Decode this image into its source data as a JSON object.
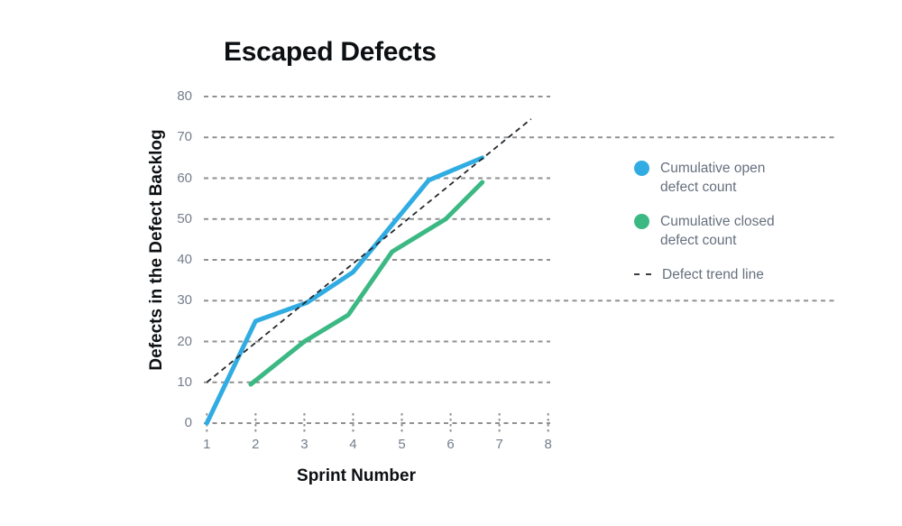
{
  "title": "Escaped Defects",
  "legend": {
    "items": [
      {
        "label": "Cumulative open\ndefect count",
        "marker": "dot",
        "color": "#31ace2"
      },
      {
        "label": "Cumulative closed\ndefect count",
        "marker": "dot",
        "color": "#3cb883"
      },
      {
        "label": "Defect trend line",
        "marker": "dash",
        "color": "#3a3f46"
      }
    ]
  },
  "chart_data": {
    "type": "line",
    "title": "Escaped Defects",
    "xlabel": "Sprint Number",
    "ylabel": "Defects in the Defect Backlog",
    "xlim": [
      1,
      8
    ],
    "ylim": [
      0,
      80
    ],
    "x_ticks": [
      1,
      2,
      3,
      4,
      5,
      6,
      7,
      8
    ],
    "y_ticks": [
      0,
      10,
      20,
      30,
      40,
      50,
      60,
      70,
      80
    ],
    "grid": "horizontal-dashed",
    "long_gridlines": [
      30,
      70
    ],
    "legend_position": "right",
    "series": [
      {
        "name": "Cumulative open defect count",
        "color": "#31ace2",
        "style": "solid",
        "points": [
          [
            1,
            0
          ],
          [
            2,
            25
          ],
          [
            3.05,
            29.5
          ],
          [
            4,
            37
          ],
          [
            5.55,
            59.5
          ],
          [
            6.65,
            65
          ]
        ]
      },
      {
        "name": "Cumulative closed defect count",
        "color": "#3cb883",
        "style": "solid",
        "points": [
          [
            1.9,
            9.5
          ],
          [
            3,
            20
          ],
          [
            3.9,
            26.5
          ],
          [
            4.8,
            42
          ],
          [
            5.9,
            50
          ],
          [
            6.65,
            59
          ]
        ]
      },
      {
        "name": "Defect trend line",
        "color": "#25282c",
        "style": "dashed",
        "points": [
          [
            1,
            10
          ],
          [
            7.65,
            74.5
          ]
        ]
      }
    ]
  }
}
